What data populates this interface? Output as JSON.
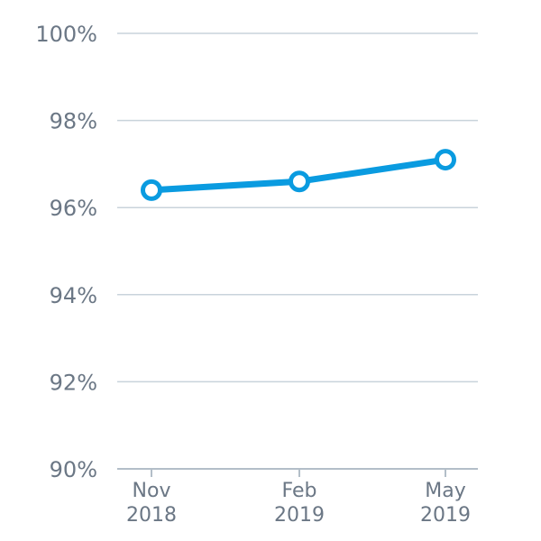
{
  "chart_data": {
    "type": "line",
    "x": [
      {
        "line1": "Nov",
        "line2": "2018"
      },
      {
        "line1": "Feb",
        "line2": "2019"
      },
      {
        "line1": "May",
        "line2": "2019"
      }
    ],
    "series": [
      {
        "values": [
          96.4,
          96.6,
          97.1
        ],
        "color": "#0a9be0"
      }
    ],
    "y_ticks": [
      "100%",
      "98%",
      "96%",
      "94%",
      "92%",
      "90%"
    ],
    "y_tick_values": [
      100,
      98,
      96,
      94,
      92,
      90
    ],
    "ylim": [
      90,
      100
    ],
    "grid": true,
    "legend": "none",
    "title": "",
    "xlabel": "",
    "ylabel": ""
  }
}
